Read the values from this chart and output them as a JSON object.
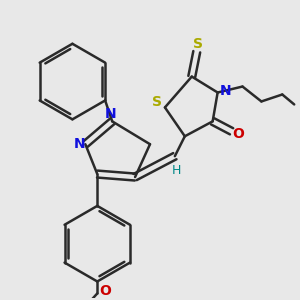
{
  "bg_color": "#e8e8e8",
  "bond_color": "#2a2a2a",
  "bond_width": 1.8,
  "figsize": [
    3.0,
    3.0
  ],
  "dpi": 100,
  "atoms": {
    "N1": {
      "label": "N",
      "color": "#1010dd",
      "fontsize": 10
    },
    "N2": {
      "label": "N",
      "color": "#1010dd",
      "fontsize": 10
    },
    "N_th": {
      "label": "N",
      "color": "#1010dd",
      "fontsize": 10
    },
    "S_th": {
      "label": "S",
      "color": "#aaaa00",
      "fontsize": 10
    },
    "S_thioxo": {
      "label": "S",
      "color": "#aaaa00",
      "fontsize": 10
    },
    "O": {
      "label": "O",
      "color": "#cc0000",
      "fontsize": 10
    },
    "O_ib": {
      "label": "O",
      "color": "#cc0000",
      "fontsize": 10
    },
    "H": {
      "label": "H",
      "color": "#008888",
      "fontsize": 9
    }
  }
}
